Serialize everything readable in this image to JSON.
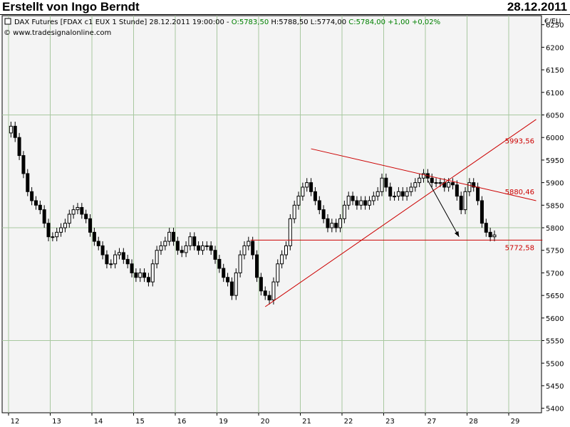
{
  "header": {
    "author": "Erstellt von Ingo Berndt",
    "date": "28.12.2011"
  },
  "chart_info": {
    "instrument": "DAX Futures [FDAX c1 EUX  1 Stunde]",
    "timestamp": "28.12.2011 19:00:00",
    "open_text": "O:5783,50",
    "high_text": "H:5788,50",
    "low_text": "L:5774,00",
    "close_text": "C:5784,00 +1,00 +0,02%",
    "copyright": "© www.tradesignalonline.com",
    "currency": "€/EU"
  },
  "colors": {
    "background": "#f4f4f4",
    "grid": "#a8c8a0",
    "candle": "#000000",
    "trendline": "#cc0000",
    "arrow": "#000000",
    "change_positive": "#008000"
  },
  "chart_data": {
    "type": "candlestick",
    "ylim": [
      5390,
      6270
    ],
    "yticks": [
      5400,
      5450,
      5500,
      5550,
      5600,
      5650,
      5700,
      5750,
      5800,
      5850,
      5900,
      5950,
      6000,
      6050,
      6100,
      6150,
      6200,
      6250
    ],
    "yaxis_side": "right",
    "days": [
      "12",
      "13",
      "14",
      "15",
      "16",
      "19",
      "20",
      "21",
      "22",
      "23",
      "27",
      "28",
      "29"
    ],
    "day_day_positions": [
      0,
      1,
      2,
      3,
      4,
      5,
      6,
      7,
      8,
      9,
      10,
      11,
      12
    ],
    "annotations": [
      {
        "label": "5993,56",
        "value": 5993.56
      },
      {
        "label": "5880,46",
        "value": 5880.46
      },
      {
        "label": "5772,58",
        "value": 5772.58
      }
    ],
    "close_path": [
      [
        -0.3,
        6010
      ],
      [
        -0.25,
        6025
      ],
      [
        -0.15,
        6000
      ],
      [
        -0.05,
        5960
      ],
      [
        0.05,
        5920
      ],
      [
        0.15,
        5880
      ],
      [
        0.25,
        5860
      ],
      [
        0.35,
        5850
      ],
      [
        0.45,
        5840
      ],
      [
        0.55,
        5810
      ],
      [
        0.65,
        5780
      ],
      [
        0.75,
        5780
      ],
      [
        0.85,
        5790
      ],
      [
        0.95,
        5800
      ],
      [
        1.05,
        5810
      ],
      [
        1.15,
        5830
      ],
      [
        1.25,
        5840
      ],
      [
        1.35,
        5845
      ],
      [
        1.45,
        5830
      ],
      [
        1.55,
        5820
      ],
      [
        1.65,
        5790
      ],
      [
        1.75,
        5770
      ],
      [
        1.85,
        5760
      ],
      [
        1.95,
        5740
      ],
      [
        2.05,
        5720
      ],
      [
        2.15,
        5720
      ],
      [
        2.25,
        5740
      ],
      [
        2.35,
        5745
      ],
      [
        2.45,
        5730
      ],
      [
        2.55,
        5720
      ],
      [
        2.65,
        5700
      ],
      [
        2.75,
        5690
      ],
      [
        2.85,
        5700
      ],
      [
        2.95,
        5690
      ],
      [
        3.05,
        5680
      ],
      [
        3.15,
        5720
      ],
      [
        3.25,
        5750
      ],
      [
        3.35,
        5760
      ],
      [
        3.45,
        5770
      ],
      [
        3.55,
        5790
      ],
      [
        3.65,
        5770
      ],
      [
        3.75,
        5750
      ],
      [
        3.85,
        5745
      ],
      [
        3.95,
        5760
      ],
      [
        4.05,
        5780
      ],
      [
        4.15,
        5760
      ],
      [
        4.25,
        5750
      ],
      [
        4.35,
        5760
      ],
      [
        4.45,
        5760
      ],
      [
        4.55,
        5750
      ],
      [
        4.65,
        5730
      ],
      [
        4.75,
        5710
      ],
      [
        4.85,
        5690
      ],
      [
        4.95,
        5680
      ],
      [
        5.05,
        5650
      ],
      [
        5.15,
        5700
      ],
      [
        5.25,
        5740
      ],
      [
        5.35,
        5760
      ],
      [
        5.45,
        5770
      ],
      [
        5.55,
        5740
      ],
      [
        5.65,
        5690
      ],
      [
        5.75,
        5660
      ],
      [
        5.85,
        5650
      ],
      [
        5.95,
        5640
      ],
      [
        6.05,
        5680
      ],
      [
        6.15,
        5720
      ],
      [
        6.25,
        5740
      ],
      [
        6.35,
        5760
      ],
      [
        6.45,
        5820
      ],
      [
        6.55,
        5850
      ],
      [
        6.65,
        5870
      ],
      [
        6.75,
        5890
      ],
      [
        6.85,
        5900
      ],
      [
        6.95,
        5880
      ],
      [
        7.05,
        5860
      ],
      [
        7.15,
        5840
      ],
      [
        7.25,
        5820
      ],
      [
        7.35,
        5800
      ],
      [
        7.45,
        5810
      ],
      [
        7.55,
        5800
      ],
      [
        7.65,
        5820
      ],
      [
        7.75,
        5850
      ],
      [
        7.85,
        5870
      ],
      [
        7.95,
        5860
      ],
      [
        8.05,
        5850
      ],
      [
        8.15,
        5860
      ],
      [
        8.25,
        5850
      ],
      [
        8.35,
        5860
      ],
      [
        8.45,
        5870
      ],
      [
        8.55,
        5880
      ],
      [
        8.65,
        5910
      ],
      [
        8.75,
        5890
      ],
      [
        8.85,
        5870
      ],
      [
        8.95,
        5870
      ],
      [
        9.05,
        5880
      ],
      [
        9.15,
        5870
      ],
      [
        9.25,
        5880
      ],
      [
        9.35,
        5890
      ],
      [
        9.45,
        5900
      ],
      [
        9.55,
        5910
      ],
      [
        9.65,
        5920
      ],
      [
        9.75,
        5910
      ],
      [
        9.85,
        5900
      ],
      [
        9.95,
        5900
      ],
      [
        10.05,
        5900
      ],
      [
        10.15,
        5890
      ],
      [
        10.25,
        5900
      ],
      [
        10.35,
        5895
      ],
      [
        10.45,
        5870
      ],
      [
        10.55,
        5840
      ],
      [
        10.65,
        5880
      ],
      [
        10.75,
        5900
      ],
      [
        10.85,
        5890
      ],
      [
        10.95,
        5860
      ],
      [
        11.05,
        5810
      ],
      [
        11.15,
        5790
      ],
      [
        11.25,
        5780
      ],
      [
        11.35,
        5784
      ]
    ]
  }
}
